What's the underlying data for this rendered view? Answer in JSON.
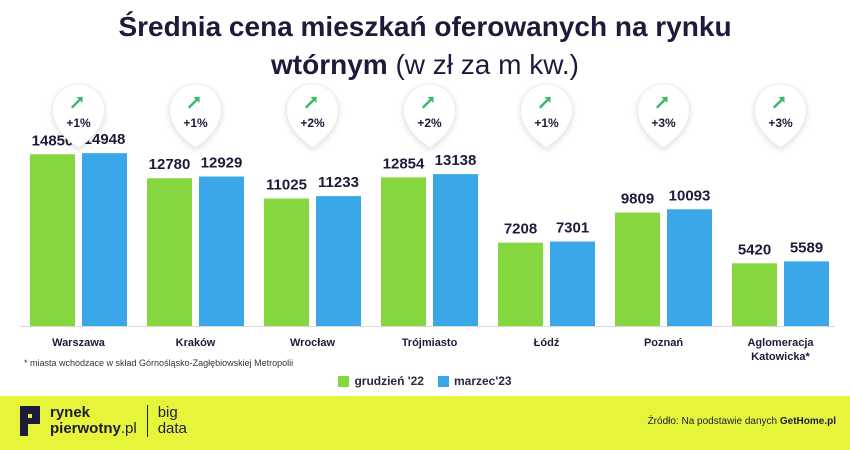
{
  "title": {
    "line1": "Średnia cena mieszkań oferowanych na rynku",
    "line2_bold": "wtórnym",
    "line2_rest": " (w zł za m kw.)"
  },
  "chart_data": {
    "type": "bar",
    "title": "Średnia cena mieszkań oferowanych na rynku wtórnym (w zł za m kw.)",
    "categories": [
      "Warszawa",
      "Kraków",
      "Wrocław",
      "Trójmiasto",
      "Łódź",
      "Poznań",
      "Aglomeracja Katowicka*"
    ],
    "category_lines": [
      [
        "Warszawa"
      ],
      [
        "Kraków"
      ],
      [
        "Wrocław"
      ],
      [
        "Trójmiasto"
      ],
      [
        "Łódź"
      ],
      [
        "Poznań"
      ],
      [
        "Aglomeracja",
        "Katowicka*"
      ]
    ],
    "series": [
      {
        "name": "grudzień '22",
        "color": "#86d63f",
        "values": [
          14850,
          12780,
          11025,
          12854,
          7208,
          9809,
          5420
        ]
      },
      {
        "name": "marzec'23",
        "color": "#3aa8e8",
        "values": [
          14948,
          12929,
          11233,
          13138,
          7301,
          10093,
          5589
        ]
      }
    ],
    "changes": [
      "+1%",
      "+1%",
      "+2%",
      "+2%",
      "+1%",
      "+3%",
      "+3%"
    ],
    "ylim": [
      0,
      16000
    ],
    "xlabel": "",
    "ylabel": "",
    "legend": "bottom"
  },
  "footnote": "* miasta wchodzace w skład Górnośląsko-Zagłębiowskiej Metropolii",
  "footer": {
    "brand_line1": "rynek",
    "brand_line2": "pierwotny",
    "brand_suffix": ".pl",
    "bigdata_line1": "big",
    "bigdata_line2": "data",
    "source_text": "Źródło: Na podstawie danych ",
    "source_bold": "GetHome.pl"
  },
  "colors": {
    "accent_footer": "#e6f53a",
    "navy": "#1c1c3a",
    "arrow": "#3bb86a"
  }
}
